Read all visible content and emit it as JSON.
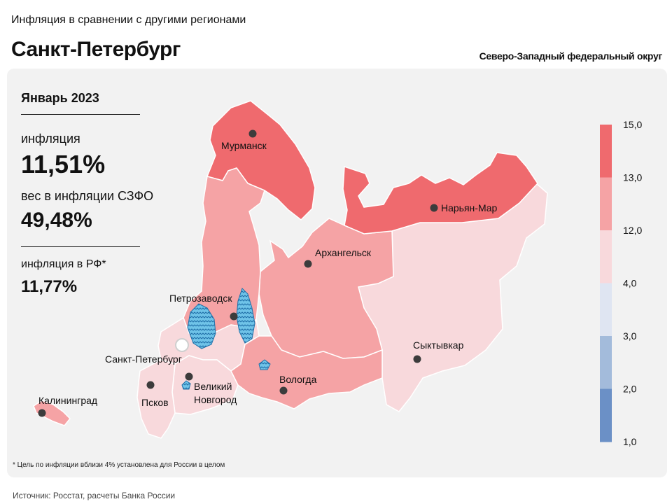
{
  "header": {
    "subtitle": "Инфляция в сравнении с другими регионами",
    "title": "Санкт-Петербург",
    "district": "Северо-Западный федеральный округ"
  },
  "stats": {
    "period": "Январь 2023",
    "inflation_label": "инфляция",
    "inflation_value": "11,51%",
    "weight_label": "вес в инфляции  СЗФО",
    "weight_value": "49,48%",
    "russia_label": "инфляция  в РФ*",
    "russia_value": "11,77%"
  },
  "cities": {
    "murmansk": "Мурманск",
    "naryan_mar": "Нарьян-Мар",
    "arkhangelsk": "Архангельск",
    "petrozavodsk": "Петрозаводск",
    "spb": "Санкт-Петербург",
    "syktyvkar": "Сыктывкар",
    "kaliningrad": "Калининград",
    "pskov": "Псков",
    "novgorod_1": "Великий",
    "novgorod_2": "Новгород",
    "vologda": "Вологда"
  },
  "legend": {
    "ticks": [
      "15,0",
      "13,0",
      "12,0",
      "4,0",
      "3,0",
      "2,0",
      "1,0"
    ],
    "colors": [
      "#ef6a6e",
      "#f5a3a5",
      "#f8d9dc",
      "#dfe5f2",
      "#a3bbdb",
      "#6b90c6"
    ]
  },
  "footnote": "* Цель по инфляции вблизи 4% установлена для России в целом",
  "source": "Источник: Росстат, расчеты Банка России"
}
